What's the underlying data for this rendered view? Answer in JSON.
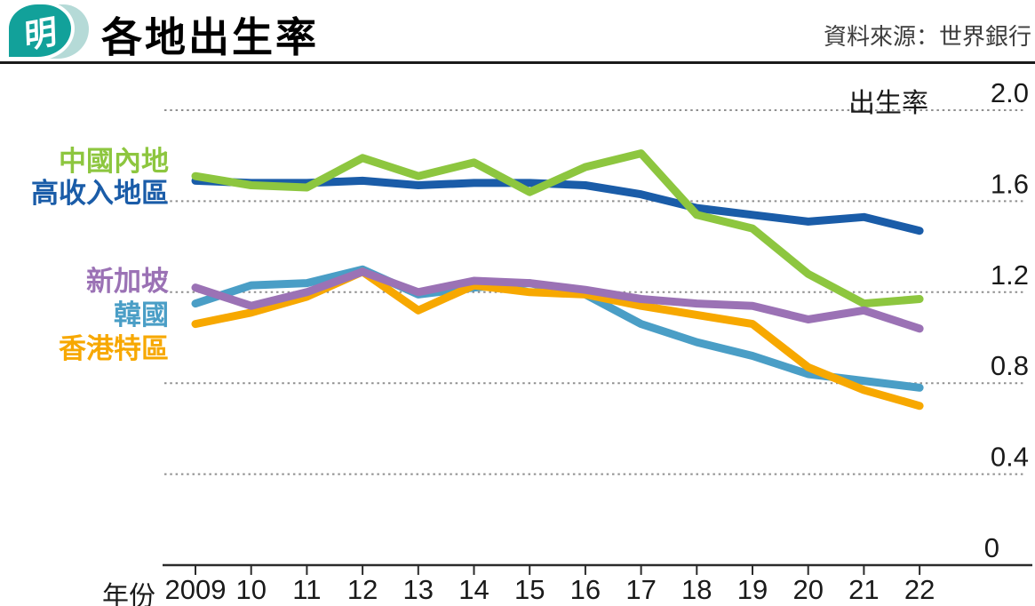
{
  "header": {
    "logo_char": "明",
    "title": "各地出生率",
    "source": "資料來源：世界銀行"
  },
  "chart_data": {
    "type": "line",
    "title": "各地出生率",
    "ylabel": "出生率",
    "xlabel": "年份",
    "ylim": [
      0,
      2.0
    ],
    "yticks": [
      0,
      0.4,
      0.8,
      1.2,
      1.6,
      2.0
    ],
    "ytick_labels": [
      "0",
      "0.4",
      "0.8",
      "1.2",
      "1.6",
      "2.0"
    ],
    "grid": "dotted-horizontal",
    "legend_position": "left-of-lines",
    "categories": [
      "2009",
      "10",
      "11",
      "12",
      "13",
      "14",
      "15",
      "16",
      "17",
      "18",
      "19",
      "20",
      "21",
      "22"
    ],
    "series": [
      {
        "name": "中國內地",
        "color": "#8DC63F",
        "values": [
          1.71,
          1.67,
          1.66,
          1.79,
          1.71,
          1.77,
          1.64,
          1.75,
          1.81,
          1.54,
          1.48,
          1.28,
          1.15,
          1.17
        ]
      },
      {
        "name": "高收入地區",
        "color": "#1A5CA8",
        "values": [
          1.69,
          1.68,
          1.68,
          1.69,
          1.67,
          1.68,
          1.68,
          1.67,
          1.63,
          1.57,
          1.54,
          1.51,
          1.53,
          1.47
        ]
      },
      {
        "name": "新加坡",
        "color": "#9B72B5",
        "values": [
          1.22,
          1.14,
          1.2,
          1.29,
          1.2,
          1.25,
          1.24,
          1.21,
          1.17,
          1.15,
          1.14,
          1.08,
          1.12,
          1.04
        ]
      },
      {
        "name": "韓國",
        "color": "#4A9EC6",
        "values": [
          1.15,
          1.23,
          1.24,
          1.3,
          1.19,
          1.22,
          1.24,
          1.19,
          1.06,
          0.98,
          0.92,
          0.84,
          0.81,
          0.78
        ]
      },
      {
        "name": "香港特區",
        "color": "#F7A800",
        "values": [
          1.06,
          1.11,
          1.18,
          1.29,
          1.12,
          1.23,
          1.2,
          1.19,
          1.14,
          1.1,
          1.06,
          0.87,
          0.77,
          0.7
        ]
      }
    ]
  }
}
